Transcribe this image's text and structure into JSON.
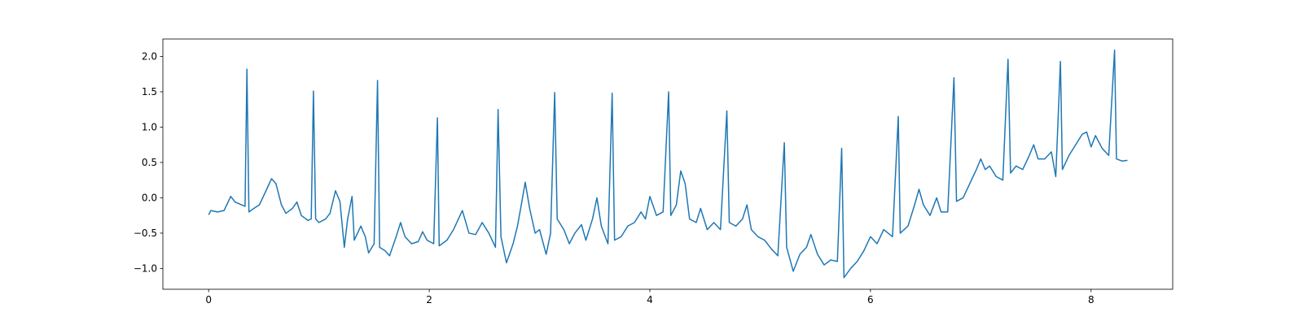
{
  "chart_data": {
    "type": "line",
    "x": [
      0.0,
      0.02,
      0.08,
      0.14,
      0.2,
      0.24,
      0.3,
      0.33,
      0.347,
      0.365,
      0.4,
      0.46,
      0.52,
      0.57,
      0.61,
      0.66,
      0.7,
      0.76,
      0.8,
      0.84,
      0.9,
      0.93,
      0.95,
      0.97,
      1.0,
      1.06,
      1.1,
      1.15,
      1.19,
      1.23,
      1.26,
      1.3,
      1.32,
      1.38,
      1.42,
      1.45,
      1.5,
      1.531,
      1.55,
      1.6,
      1.64,
      1.7,
      1.74,
      1.78,
      1.84,
      1.9,
      1.94,
      1.98,
      2.04,
      2.074,
      2.09,
      2.16,
      2.22,
      2.3,
      2.36,
      2.42,
      2.48,
      2.54,
      2.6,
      2.624,
      2.65,
      2.7,
      2.76,
      2.8,
      2.84,
      2.87,
      2.91,
      2.96,
      3.0,
      3.06,
      3.1,
      3.137,
      3.16,
      3.22,
      3.27,
      3.32,
      3.38,
      3.42,
      3.48,
      3.52,
      3.56,
      3.62,
      3.658,
      3.68,
      3.74,
      3.8,
      3.86,
      3.92,
      3.96,
      4.0,
      4.06,
      4.12,
      4.17,
      4.19,
      4.24,
      4.28,
      4.32,
      4.36,
      4.42,
      4.46,
      4.52,
      4.58,
      4.64,
      4.698,
      4.72,
      4.78,
      4.84,
      4.88,
      4.92,
      4.98,
      5.04,
      5.1,
      5.16,
      5.219,
      5.24,
      5.3,
      5.36,
      5.42,
      5.46,
      5.52,
      5.58,
      5.64,
      5.7,
      5.739,
      5.76,
      5.82,
      5.88,
      5.94,
      6.0,
      6.06,
      6.12,
      6.2,
      6.252,
      6.27,
      6.34,
      6.4,
      6.44,
      6.48,
      6.54,
      6.6,
      6.64,
      6.7,
      6.757,
      6.78,
      6.84,
      6.9,
      6.96,
      7.0,
      7.04,
      7.08,
      7.14,
      7.2,
      7.247,
      7.27,
      7.32,
      7.38,
      7.44,
      7.48,
      7.52,
      7.58,
      7.64,
      7.68,
      7.722,
      7.74,
      7.8,
      7.86,
      7.92,
      7.96,
      8.0,
      8.04,
      8.1,
      8.16,
      8.213,
      8.23,
      8.28,
      8.33
    ],
    "series": [
      {
        "color": "#1f77b4",
        "values": [
          -0.24,
          -0.18,
          -0.2,
          -0.18,
          0.02,
          -0.06,
          -0.1,
          -0.12,
          1.82,
          -0.2,
          -0.16,
          -0.1,
          0.1,
          0.27,
          0.2,
          -0.1,
          -0.22,
          -0.15,
          -0.06,
          -0.25,
          -0.32,
          -0.3,
          1.51,
          -0.3,
          -0.35,
          -0.3,
          -0.22,
          0.1,
          -0.05,
          -0.7,
          -0.3,
          0.02,
          -0.6,
          -0.4,
          -0.55,
          -0.78,
          -0.65,
          1.66,
          -0.7,
          -0.75,
          -0.82,
          -0.55,
          -0.35,
          -0.55,
          -0.65,
          -0.62,
          -0.48,
          -0.6,
          -0.65,
          1.13,
          -0.68,
          -0.6,
          -0.45,
          -0.18,
          -0.5,
          -0.52,
          -0.35,
          -0.5,
          -0.7,
          1.25,
          -0.55,
          -0.92,
          -0.65,
          -0.4,
          -0.05,
          0.22,
          -0.15,
          -0.5,
          -0.45,
          -0.8,
          -0.5,
          1.49,
          -0.3,
          -0.45,
          -0.65,
          -0.5,
          -0.38,
          -0.6,
          -0.3,
          0.0,
          -0.4,
          -0.65,
          1.48,
          -0.6,
          -0.55,
          -0.4,
          -0.35,
          -0.2,
          -0.3,
          0.02,
          -0.25,
          -0.2,
          1.5,
          -0.25,
          -0.1,
          0.38,
          0.2,
          -0.3,
          -0.35,
          -0.15,
          -0.45,
          -0.35,
          -0.45,
          1.23,
          -0.35,
          -0.4,
          -0.3,
          -0.1,
          -0.45,
          -0.55,
          -0.6,
          -0.72,
          -0.82,
          0.78,
          -0.7,
          -1.04,
          -0.8,
          -0.7,
          -0.52,
          -0.8,
          -0.95,
          -0.88,
          -0.9,
          0.7,
          -1.13,
          -1.0,
          -0.9,
          -0.75,
          -0.55,
          -0.65,
          -0.45,
          -0.55,
          1.15,
          -0.5,
          -0.4,
          -0.1,
          0.12,
          -0.1,
          -0.25,
          0.0,
          -0.2,
          -0.2,
          1.7,
          -0.05,
          0.0,
          0.2,
          0.4,
          0.55,
          0.4,
          0.45,
          0.3,
          0.25,
          1.96,
          0.35,
          0.45,
          0.4,
          0.6,
          0.75,
          0.55,
          0.55,
          0.65,
          0.3,
          1.93,
          0.4,
          0.6,
          0.75,
          0.9,
          0.93,
          0.72,
          0.88,
          0.7,
          0.6,
          2.09,
          0.55,
          0.52,
          0.53
        ]
      }
    ],
    "xlim": [
      -0.415,
      8.74
    ],
    "ylim": [
      -1.294,
      2.247
    ],
    "xticks": [
      0,
      2,
      4,
      6,
      8
    ],
    "yticks": [
      {
        "value": -1.0,
        "label": "−1.0"
      },
      {
        "value": -0.5,
        "label": "−0.5"
      },
      {
        "value": 0.0,
        "label": "0.0"
      },
      {
        "value": 0.5,
        "label": "0.5"
      },
      {
        "value": 1.0,
        "label": "1.0"
      },
      {
        "value": 1.5,
        "label": "1.5"
      },
      {
        "value": 2.0,
        "label": "2.0"
      }
    ]
  }
}
